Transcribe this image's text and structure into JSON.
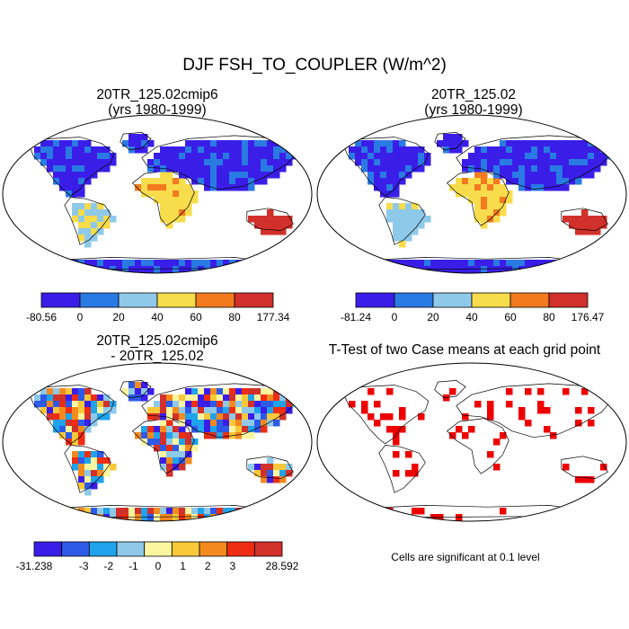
{
  "title": "DJF FSH_TO_COUPLER (W/m^2)",
  "panels": [
    {
      "id": "case1",
      "title_line1": "20TR_125.02cmip6",
      "title_line2": "(yrs 1980-1999)"
    },
    {
      "id": "case2",
      "title_line1": "20TR_125.02",
      "title_line2": "(yrs 1980-1999)"
    },
    {
      "id": "diff",
      "title_line1": "20TR_125.02cmip6",
      "title_line2": "- 20TR_125.02"
    },
    {
      "id": "ttest",
      "title_line1": "T-Test of two Case means at each grid point",
      "title_line2": ""
    }
  ],
  "note": "Cells are significant at 0.1 level",
  "chart_data": [
    {
      "type": "heatmap",
      "title": "20TR_125.02cmip6 (yrs 1980-1999)",
      "colorbar": {
        "labels": [
          "-80.56",
          "0",
          "20",
          "40",
          "60",
          "80",
          "177.34"
        ],
        "colors": [
          "#3a1ee8",
          "#2a7ae3",
          "#8ec9ea",
          "#f7dc4c",
          "#f37a1e",
          "#d1302b"
        ]
      }
    },
    {
      "type": "heatmap",
      "title": "20TR_125.02 (yrs 1980-1999)",
      "colorbar": {
        "labels": [
          "-81.24",
          "0",
          "20",
          "40",
          "60",
          "80",
          "176.47"
        ],
        "colors": [
          "#3a1ee8",
          "#2a7ae3",
          "#8ec9ea",
          "#f7dc4c",
          "#f37a1e",
          "#d1302b"
        ]
      }
    },
    {
      "type": "heatmap",
      "title": "20TR_125.02cmip6 - 20TR_125.02",
      "colorbar": {
        "labels": [
          "-31.238",
          "",
          "-3",
          "-2",
          "-1",
          "0",
          "1",
          "2",
          "3",
          "",
          "28.592"
        ],
        "colors": [
          "#3a1ee8",
          "#2e5ae8",
          "#1fa3ea",
          "#8ec9ea",
          "#fbf5a0",
          "#f8c83a",
          "#f48a1e",
          "#ee2d13",
          "#d1302b"
        ]
      }
    },
    {
      "type": "heatmap",
      "title": "T-Test of two Case means at each grid point",
      "colorbar": null
    }
  ]
}
